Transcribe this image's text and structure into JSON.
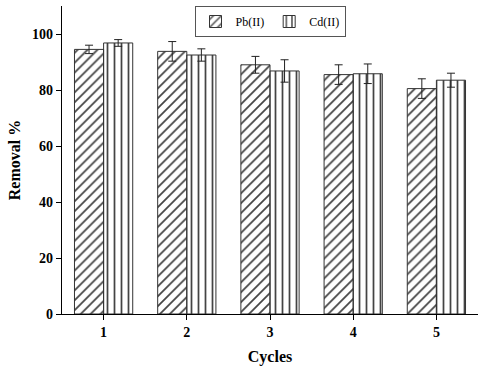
{
  "chart_data": {
    "type": "bar",
    "categories": [
      "1",
      "2",
      "3",
      "4",
      "5"
    ],
    "series": [
      {
        "name": "Pb(II)",
        "color": "#f6d7b7",
        "values": [
          94.5,
          93.8,
          89.0,
          85.5,
          80.5
        ],
        "error": [
          1.5,
          3.5,
          3.0,
          3.5,
          3.5
        ]
      },
      {
        "name": "Cd(II)",
        "color": "#86a4d6",
        "values": [
          96.8,
          92.5,
          86.8,
          85.8,
          83.5
        ],
        "error": [
          1.2,
          2.2,
          4.0,
          3.5,
          2.5
        ]
      }
    ],
    "x_label": "Cycles",
    "y_label": "Removal %",
    "ylim": [
      0,
      110
    ],
    "yticks": [
      0,
      20,
      40,
      60,
      80,
      100
    ],
    "grid": false,
    "legend": "top"
  }
}
